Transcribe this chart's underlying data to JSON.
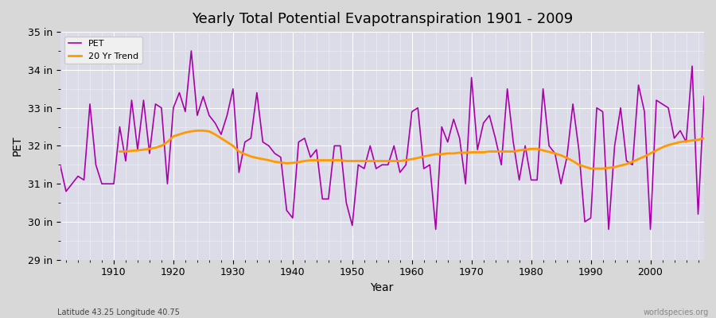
{
  "title": "Yearly Total Potential Evapotranspiration 1901 - 2009",
  "xlabel": "Year",
  "ylabel": "PET",
  "subtitle_left": "Latitude 43.25 Longitude 40.75",
  "subtitle_right": "worldspecies.org",
  "ylim": [
    29,
    35
  ],
  "xlim": [
    1901,
    2009
  ],
  "yticks": [
    29,
    30,
    31,
    32,
    33,
    34,
    35
  ],
  "ytick_labels": [
    "29 in",
    "30 in",
    "31 in",
    "32 in",
    "33 in",
    "34 in",
    "35 in"
  ],
  "pet_color": "#aa00aa",
  "trend_color": "#ff9900",
  "years": [
    1901,
    1902,
    1903,
    1904,
    1905,
    1906,
    1907,
    1908,
    1909,
    1910,
    1911,
    1912,
    1913,
    1914,
    1915,
    1916,
    1917,
    1918,
    1919,
    1920,
    1921,
    1922,
    1923,
    1924,
    1925,
    1926,
    1927,
    1928,
    1929,
    1930,
    1931,
    1932,
    1933,
    1934,
    1935,
    1936,
    1937,
    1938,
    1939,
    1940,
    1941,
    1942,
    1943,
    1944,
    1945,
    1946,
    1947,
    1948,
    1949,
    1950,
    1951,
    1952,
    1953,
    1954,
    1955,
    1956,
    1957,
    1958,
    1959,
    1960,
    1961,
    1962,
    1963,
    1964,
    1965,
    1966,
    1967,
    1968,
    1969,
    1970,
    1971,
    1972,
    1973,
    1974,
    1975,
    1976,
    1977,
    1978,
    1979,
    1980,
    1981,
    1982,
    1983,
    1984,
    1985,
    1986,
    1987,
    1988,
    1989,
    1990,
    1991,
    1992,
    1993,
    1994,
    1995,
    1996,
    1997,
    1998,
    1999,
    2000,
    2001,
    2002,
    2003,
    2004,
    2005,
    2006,
    2007,
    2008,
    2009
  ],
  "pet_values": [
    31.5,
    30.8,
    31.0,
    31.2,
    31.1,
    33.1,
    31.5,
    31.0,
    31.0,
    31.0,
    32.5,
    31.6,
    33.2,
    31.9,
    33.2,
    31.8,
    33.1,
    33.0,
    31.0,
    33.0,
    33.4,
    32.9,
    34.5,
    32.8,
    33.3,
    32.8,
    32.6,
    32.3,
    32.8,
    33.5,
    31.3,
    32.1,
    32.2,
    33.4,
    32.1,
    32.0,
    31.8,
    31.7,
    30.3,
    30.1,
    32.1,
    32.2,
    31.7,
    31.9,
    30.6,
    30.6,
    32.0,
    32.0,
    30.5,
    29.9,
    31.5,
    31.4,
    32.0,
    31.4,
    31.5,
    31.5,
    32.0,
    31.3,
    31.5,
    32.9,
    33.0,
    31.4,
    31.5,
    29.8,
    32.5,
    32.1,
    32.7,
    32.2,
    31.0,
    33.8,
    31.9,
    32.6,
    32.8,
    32.2,
    31.5,
    33.5,
    32.1,
    31.1,
    32.0,
    31.1,
    31.1,
    33.5,
    32.0,
    31.8,
    31.0,
    31.7,
    33.1,
    31.9,
    30.0,
    30.1,
    33.0,
    32.9,
    29.8,
    32.0,
    33.0,
    31.6,
    31.5,
    33.6,
    32.9,
    29.8,
    33.2,
    33.1,
    33.0,
    32.2,
    32.4,
    32.1,
    34.1,
    30.2,
    33.3
  ],
  "trend_years": [
    1911,
    1912,
    1913,
    1914,
    1915,
    1916,
    1917,
    1918,
    1919,
    1920,
    1921,
    1922,
    1923,
    1924,
    1925,
    1926,
    1927,
    1928,
    1929,
    1930,
    1931,
    1932,
    1933,
    1934,
    1935,
    1936,
    1937,
    1938,
    1939,
    1940,
    1941,
    1942,
    1943,
    1944,
    1945,
    1946,
    1947,
    1948,
    1949,
    1950,
    1951,
    1952,
    1953,
    1954,
    1955,
    1956,
    1957,
    1958,
    1959,
    1960,
    1961,
    1962,
    1963,
    1964,
    1965,
    1966,
    1967,
    1968,
    1969,
    1970,
    1971,
    1972,
    1973,
    1974,
    1975,
    1976,
    1977,
    1978,
    1979,
    1980,
    1981,
    1982,
    1983,
    1984,
    1985,
    1986,
    1987,
    1988,
    1989,
    1990,
    1991,
    1992,
    1993,
    1994,
    1995,
    1996,
    1997,
    1998,
    1999,
    2000,
    2001,
    2002,
    2003,
    2004,
    2005,
    2006,
    2007,
    2008,
    2009
  ],
  "trend_values": [
    31.85,
    31.85,
    31.87,
    31.88,
    31.9,
    31.92,
    31.95,
    32.0,
    32.1,
    32.25,
    32.3,
    32.35,
    32.38,
    32.4,
    32.4,
    32.38,
    32.3,
    32.2,
    32.1,
    32.0,
    31.85,
    31.78,
    31.72,
    31.68,
    31.65,
    31.62,
    31.58,
    31.56,
    31.54,
    31.55,
    31.57,
    31.6,
    31.62,
    31.62,
    31.62,
    31.62,
    31.62,
    31.62,
    31.6,
    31.6,
    31.6,
    31.6,
    31.6,
    31.6,
    31.6,
    31.6,
    31.6,
    31.6,
    31.62,
    31.65,
    31.68,
    31.72,
    31.75,
    31.78,
    31.78,
    31.8,
    31.8,
    31.82,
    31.82,
    31.83,
    31.83,
    31.83,
    31.85,
    31.85,
    31.85,
    31.85,
    31.85,
    31.88,
    31.9,
    31.92,
    31.92,
    31.88,
    31.84,
    31.8,
    31.75,
    31.68,
    31.6,
    31.5,
    31.45,
    31.4,
    31.4,
    31.4,
    31.42,
    31.44,
    31.48,
    31.52,
    31.58,
    31.65,
    31.72,
    31.8,
    31.88,
    31.96,
    32.02,
    32.06,
    32.1,
    32.12,
    32.14,
    32.16,
    32.2
  ]
}
